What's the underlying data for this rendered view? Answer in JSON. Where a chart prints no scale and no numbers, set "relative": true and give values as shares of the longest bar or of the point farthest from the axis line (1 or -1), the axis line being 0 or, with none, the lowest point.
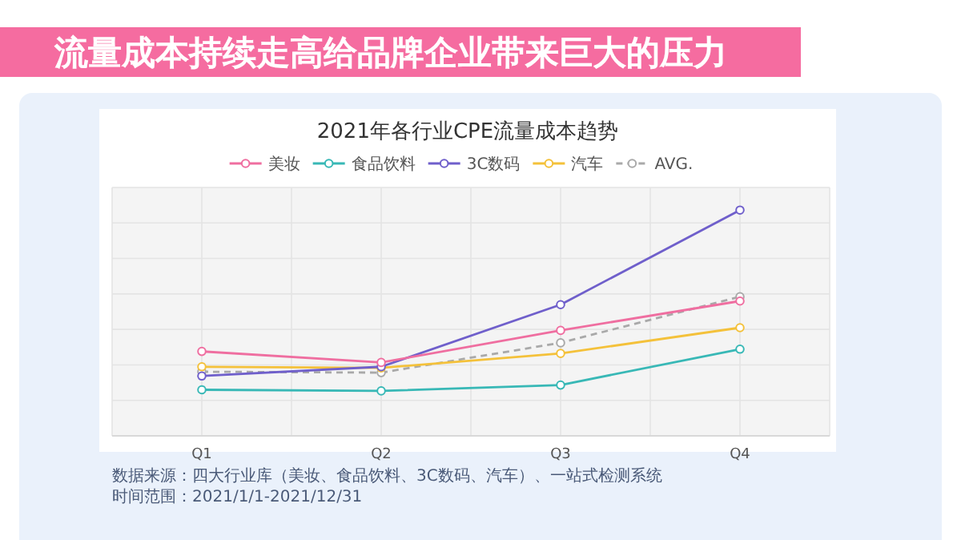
{
  "chart_data": {
    "type": "line",
    "title": "流量成本持续走高给品牌企业带来巨大的压力",
    "subtitle": "2021年各行业CPE流量成本趋势",
    "categories": [
      "Q1",
      "Q2",
      "Q3",
      "Q4"
    ],
    "relative": true,
    "grid": true,
    "legend": "top",
    "marker": "circle",
    "series": [
      {
        "name": "美妆",
        "color": "#ef6ea0",
        "values": [
          0.374,
          0.325,
          0.467,
          0.597
        ]
      },
      {
        "name": "食品饮料",
        "color": "#38b8b6",
        "values": [
          0.204,
          0.199,
          0.225,
          0.384
        ]
      },
      {
        "name": "3C数码",
        "color": "#6f5fcb",
        "values": [
          0.265,
          0.306,
          0.581,
          1
        ]
      },
      {
        "name": "汽车",
        "color": "#f4c13a",
        "values": [
          0.306,
          0.301,
          0.365,
          0.479
        ]
      },
      {
        "name": "AVG.",
        "color": "#a9a9a9",
        "line_style": "dashed",
        "values": [
          0.284,
          0.28,
          0.412,
          0.616
        ]
      }
    ],
    "annotations": [
      "数据来源：四大行业库（美妆、食品饮料、3C数码、汽车）、一站式检测系统",
      "时间范围：2021/1/1-2021/12/31"
    ]
  }
}
